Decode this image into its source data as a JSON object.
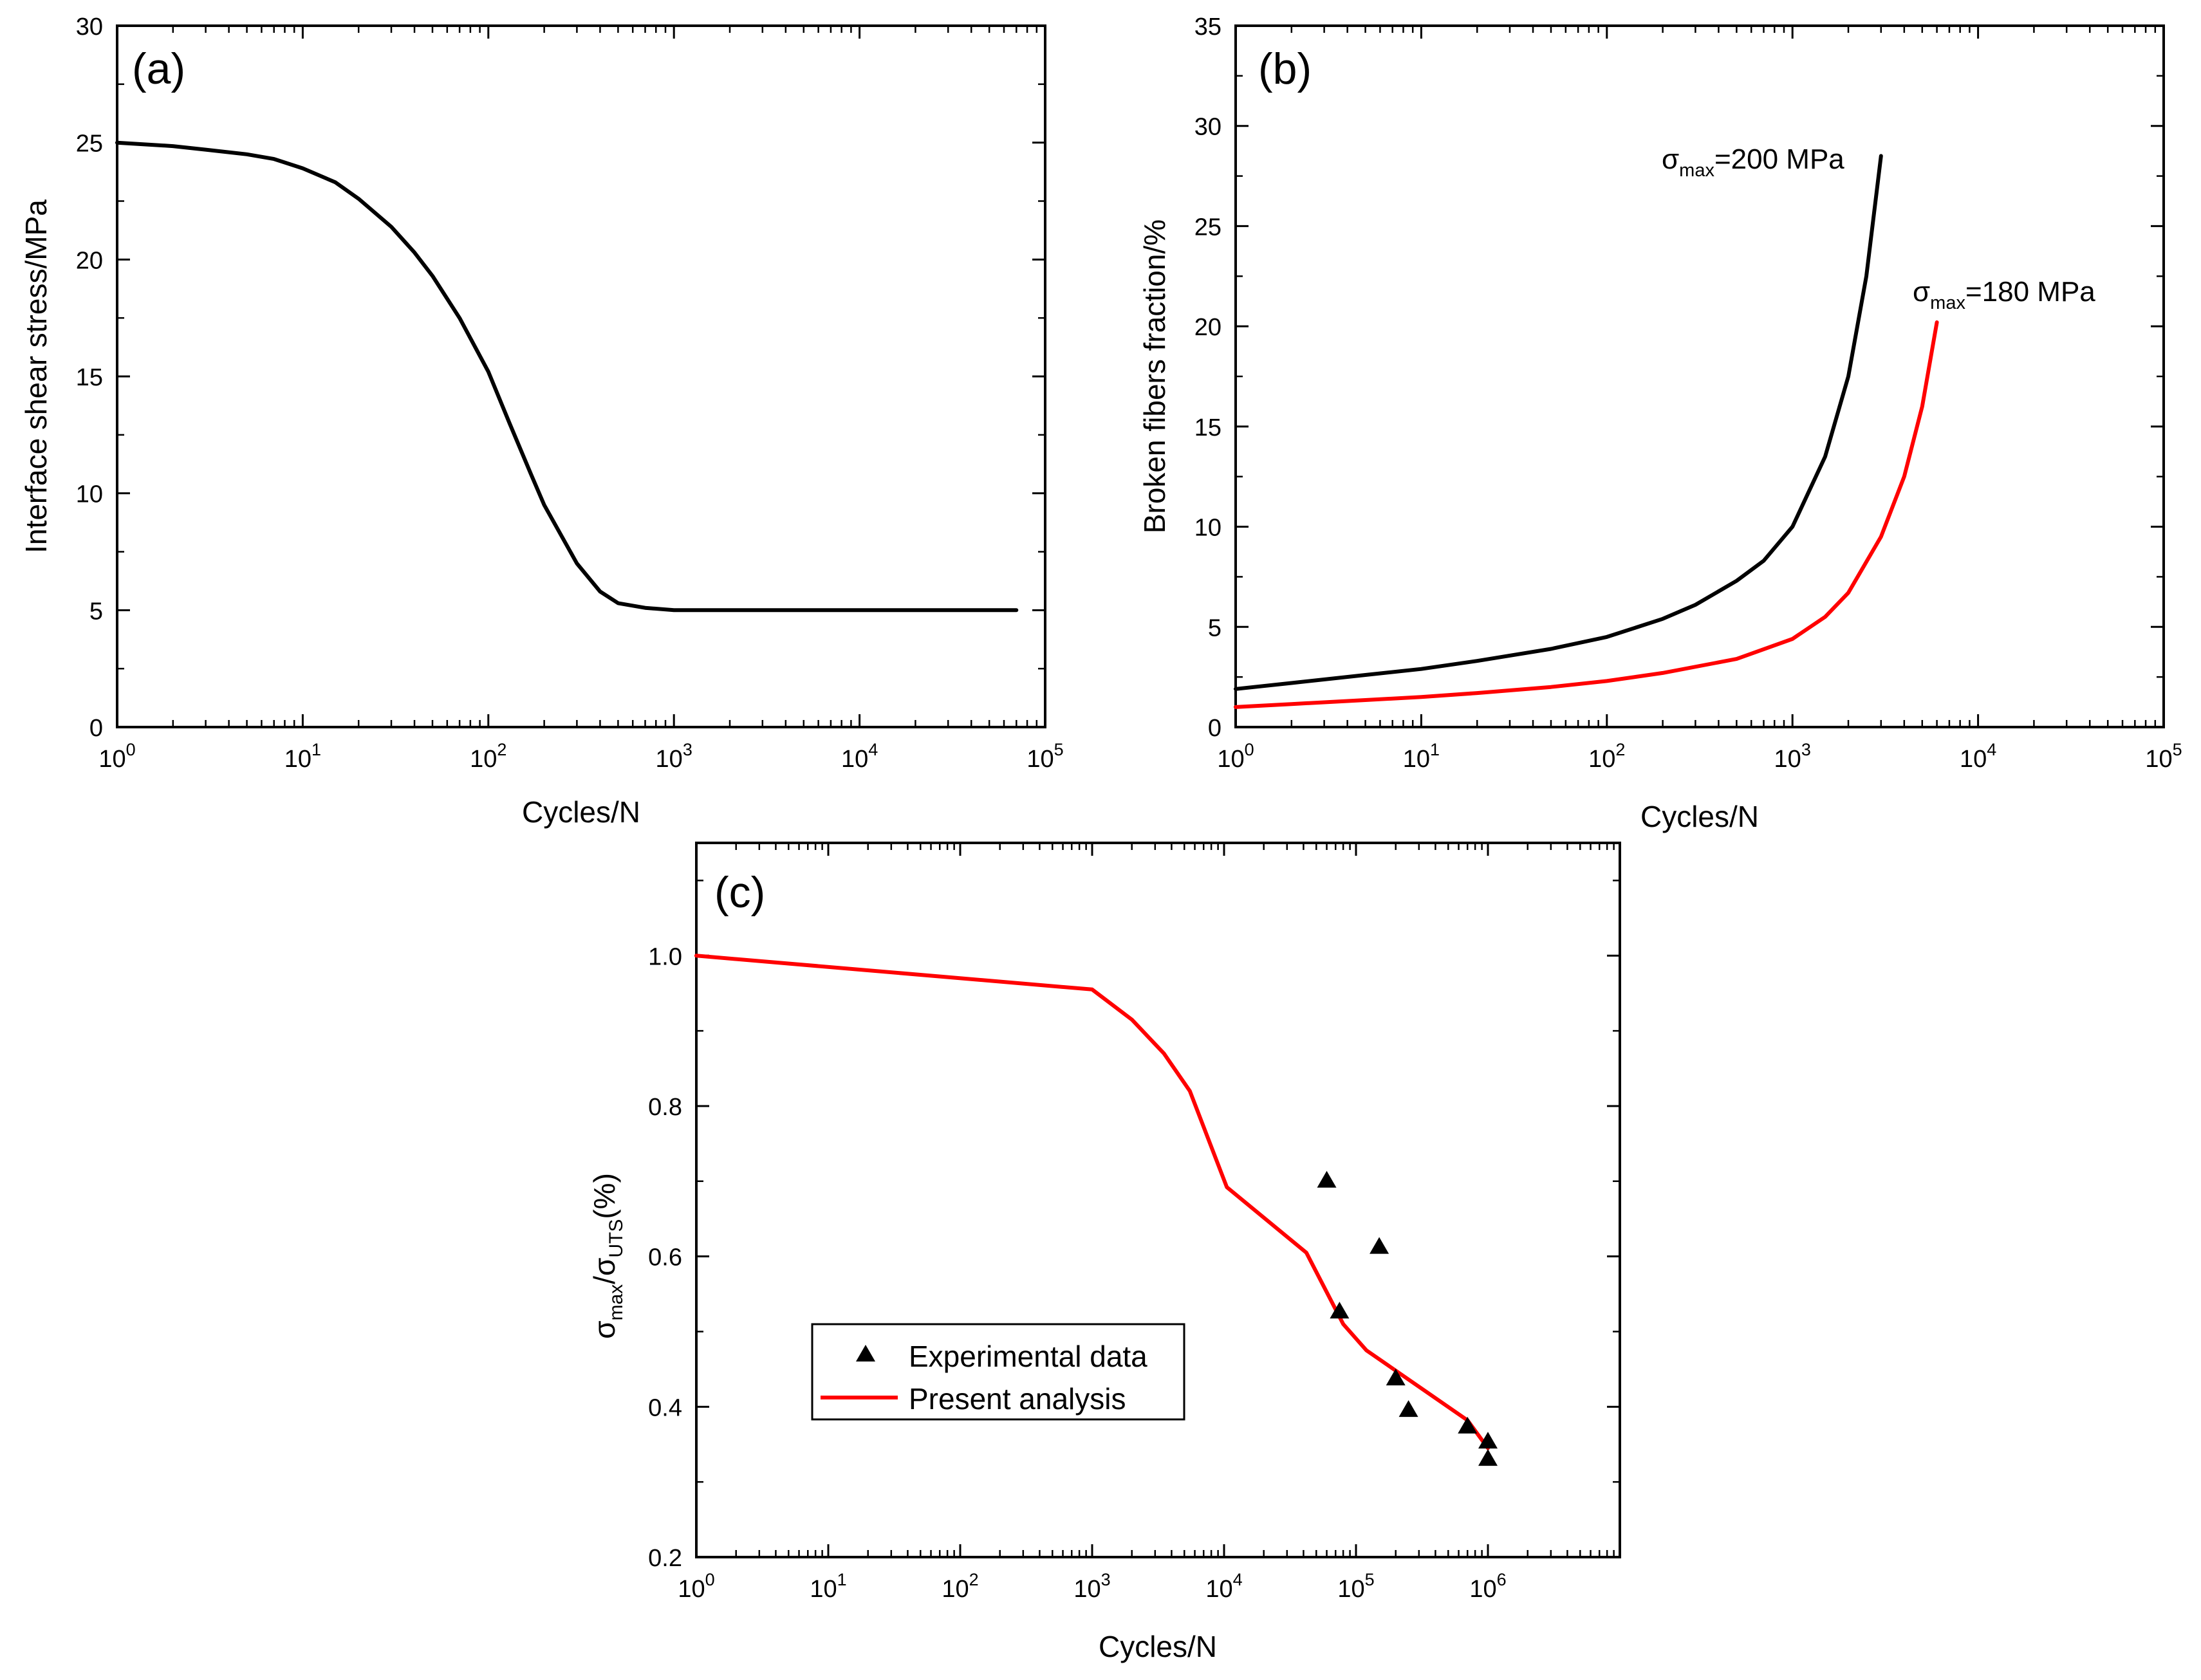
{
  "colors": {
    "black": "#000000",
    "red": "#ff0000"
  },
  "chart_data": [
    {
      "id": "a",
      "type": "line",
      "panel_label": "(a)",
      "xlabel": "Cycles/N",
      "ylabel": "Interface shear stress/MPa",
      "xscale": "log",
      "xlim": [
        1,
        100000
      ],
      "ylim": [
        0,
        30
      ],
      "x_ticks": [
        {
          "value": 1,
          "base": "10",
          "exp": "0"
        },
        {
          "value": 10,
          "base": "10",
          "exp": "1"
        },
        {
          "value": 100,
          "base": "10",
          "exp": "2"
        },
        {
          "value": 1000,
          "base": "10",
          "exp": "3"
        },
        {
          "value": 10000,
          "base": "10",
          "exp": "4"
        },
        {
          "value": 100000,
          "base": "10",
          "exp": "5"
        }
      ],
      "y_ticks": [
        0,
        5,
        10,
        15,
        20,
        25,
        30
      ],
      "series": [
        {
          "name": "interface shear stress",
          "color": "#000000",
          "x": [
            1,
            2,
            3,
            5,
            7,
            10,
            15,
            20,
            30,
            40,
            50,
            70,
            100,
            130,
            170,
            200,
            300,
            400,
            500,
            700,
            1000,
            2000,
            5000,
            10000,
            20000,
            70000
          ],
          "y": [
            25,
            24.85,
            24.7,
            24.5,
            24.3,
            23.9,
            23.3,
            22.6,
            21.4,
            20.3,
            19.3,
            17.5,
            15.2,
            13.0,
            10.8,
            9.5,
            7.0,
            5.8,
            5.3,
            5.1,
            5.0,
            5.0,
            5.0,
            5.0,
            5.0,
            5.0
          ]
        }
      ]
    },
    {
      "id": "b",
      "type": "line",
      "panel_label": "(b)",
      "xlabel": "Cycles/N",
      "ylabel": "Broken fibers fraction/%",
      "xscale": "log",
      "xlim": [
        1,
        100000
      ],
      "ylim": [
        0,
        35
      ],
      "x_ticks": [
        {
          "value": 1,
          "base": "10",
          "exp": "0"
        },
        {
          "value": 10,
          "base": "10",
          "exp": "1"
        },
        {
          "value": 100,
          "base": "10",
          "exp": "2"
        },
        {
          "value": 1000,
          "base": "10",
          "exp": "3"
        },
        {
          "value": 10000,
          "base": "10",
          "exp": "4"
        },
        {
          "value": 100000,
          "base": "10",
          "exp": "5"
        }
      ],
      "y_ticks": [
        0,
        5,
        10,
        15,
        20,
        25,
        30,
        35
      ],
      "series": [
        {
          "name": "σmax=200 MPa",
          "color": "#000000",
          "label_sigma": "σ",
          "label_sub": "max",
          "label_rest": "=200 MPa",
          "x": [
            1,
            2,
            5,
            10,
            20,
            50,
            100,
            200,
            300,
            500,
            700,
            1000,
            1500,
            2000,
            2500,
            3000
          ],
          "y": [
            1.9,
            2.2,
            2.6,
            2.9,
            3.3,
            3.9,
            4.5,
            5.4,
            6.1,
            7.3,
            8.3,
            10.0,
            13.5,
            17.5,
            22.5,
            28.5
          ]
        },
        {
          "name": "σmax=180 MPa",
          "color": "#ff0000",
          "label_sigma": "σ",
          "label_sub": "max",
          "label_rest": "=180 MPa",
          "x": [
            1,
            2,
            5,
            10,
            20,
            50,
            100,
            200,
            500,
            1000,
            1500,
            2000,
            3000,
            4000,
            5000,
            6000
          ],
          "y": [
            1.0,
            1.15,
            1.35,
            1.5,
            1.7,
            2.0,
            2.3,
            2.7,
            3.4,
            4.4,
            5.5,
            6.7,
            9.5,
            12.5,
            16.0,
            20.2
          ]
        }
      ]
    },
    {
      "id": "c",
      "type": "line+scatter",
      "panel_label": "(c)",
      "xlabel": "Cycles/N",
      "ylabel_sigma1": "σ",
      "ylabel_sub1": "max",
      "ylabel_mid": "/σ",
      "ylabel_sub2": "UTS",
      "ylabel_rest": "(%)",
      "xscale": "log",
      "xlim": [
        1,
        10000000
      ],
      "ylim": [
        0.2,
        1.15
      ],
      "x_ticks": [
        {
          "value": 1,
          "base": "10",
          "exp": "0"
        },
        {
          "value": 10,
          "base": "10",
          "exp": "1"
        },
        {
          "value": 100,
          "base": "10",
          "exp": "2"
        },
        {
          "value": 1000,
          "base": "10",
          "exp": "3"
        },
        {
          "value": 10000,
          "base": "10",
          "exp": "4"
        },
        {
          "value": 100000,
          "base": "10",
          "exp": "5"
        },
        {
          "value": 1000000,
          "base": "10",
          "exp": "6"
        }
      ],
      "y_ticks": [
        {
          "value": 0.2,
          "label": "0.2"
        },
        {
          "value": 0.4,
          "label": "0.4"
        },
        {
          "value": 0.6,
          "label": "0.6"
        },
        {
          "value": 0.8,
          "label": "0.8"
        },
        {
          "value": 1.0,
          "label": "1.0"
        }
      ],
      "series": [
        {
          "name": "Present analysis",
          "kind": "line",
          "color": "#ff0000",
          "x": [
            1,
            1000,
            2000,
            3500,
            5500,
            10500,
            42000,
            80000,
            120000,
            700000,
            1000000
          ],
          "y": [
            1.0,
            0.955,
            0.915,
            0.87,
            0.82,
            0.692,
            0.605,
            0.51,
            0.475,
            0.382,
            0.345
          ]
        },
        {
          "name": "Experimental data",
          "kind": "scatter",
          "marker": "triangle",
          "color": "#000000",
          "x": [
            60000,
            150000,
            75000,
            200000,
            250000,
            700000,
            1000000,
            1000000
          ],
          "y": [
            0.7,
            0.612,
            0.526,
            0.437,
            0.395,
            0.373,
            0.353,
            0.33
          ]
        }
      ],
      "legend": {
        "position": "lower-left",
        "entries": [
          {
            "label": "Experimental data",
            "marker": "triangle",
            "color": "#000000"
          },
          {
            "label": "Present analysis",
            "marker": "line",
            "color": "#ff0000"
          }
        ]
      }
    }
  ]
}
